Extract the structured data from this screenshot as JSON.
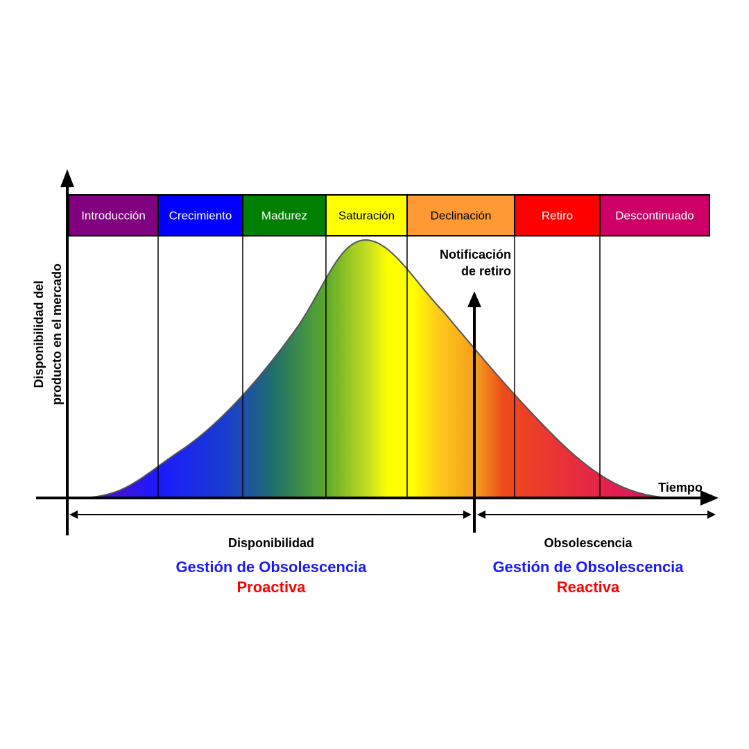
{
  "phases": [
    {
      "label": "Introducción",
      "color": "#800080",
      "text_color": "#ffffff"
    },
    {
      "label": "Crecimiento",
      "color": "#0000ff",
      "text_color": "#ffffff"
    },
    {
      "label": "Madurez",
      "color": "#008000",
      "text_color": "#ffffff"
    },
    {
      "label": "Saturación",
      "color": "#ffff00",
      "text_color": "#000000"
    },
    {
      "label": "Declinación",
      "color": "#ff9933",
      "text_color": "#000000"
    },
    {
      "label": "Retiro",
      "color": "#ff0000",
      "text_color": "#ffffff"
    },
    {
      "label": "Descontinuado",
      "color": "#cc0066",
      "text_color": "#ffffff"
    }
  ],
  "y_axis_label_line1": "Disponibilidad del",
  "y_axis_label_line2": "producto en el mercado",
  "x_axis_label": "Tiempo",
  "notification_line1": "Notificación",
  "notification_line2": "de retiro",
  "left_span_label": "Disponibilidad",
  "right_span_label": "Obsolescencia",
  "left_mgmt_line1": "Gestión de Obsolescencia",
  "left_mgmt_line2": "Proactiva",
  "right_mgmt_line1": "Gestión de Obsolescencia",
  "right_mgmt_line2": "Reactiva",
  "colors": {
    "mgmt_blue": "#1a1aff",
    "mgmt_red": "#ff0000"
  }
}
